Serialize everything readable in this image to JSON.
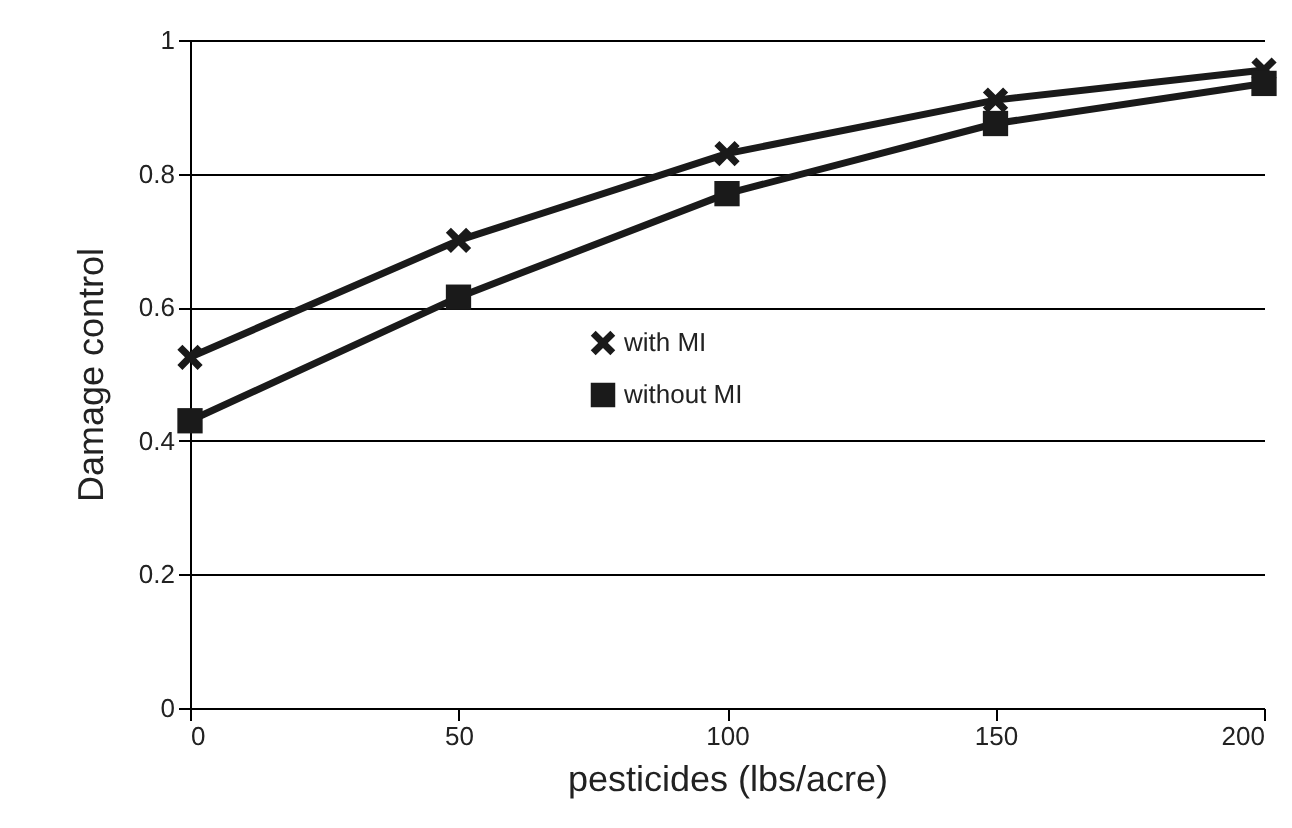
{
  "chart_data": {
    "type": "line",
    "xlabel": "pesticides (lbs/acre)",
    "ylabel": "Damage control",
    "x": [
      0,
      50,
      100,
      150,
      200
    ],
    "series": [
      {
        "name": "with MI",
        "color": "#1a1a1a",
        "marker": "cross",
        "values": [
          0.525,
          0.7,
          0.83,
          0.91,
          0.955
        ]
      },
      {
        "name": "without MI",
        "color": "#1a1a1a",
        "marker": "square",
        "values": [
          0.43,
          0.615,
          0.77,
          0.875,
          0.935
        ]
      }
    ],
    "xlim": [
      0,
      200
    ],
    "xticks": [
      0,
      50,
      100,
      150,
      200
    ],
    "ylim": [
      0,
      1
    ],
    "yticks": [
      0,
      0.2,
      0.4,
      0.6,
      0.8,
      1
    ],
    "grid": "y",
    "legend": "center",
    "line_style": "solid"
  }
}
